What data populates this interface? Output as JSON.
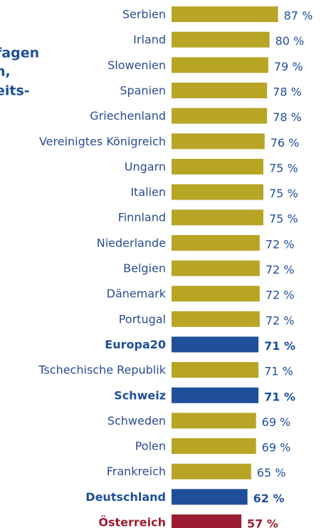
{
  "chart_data": {
    "type": "bar",
    "orientation": "horizontal",
    "title_lines": [
      "fagen",
      "n,",
      "eits-"
    ],
    "categories": [
      "Serbien",
      "Irland",
      "Slowenien",
      "Spanien",
      "Griechenland",
      "Vereinigtes Königreich",
      "Ungarn",
      "Italien",
      "Finnland",
      "Niederlande",
      "Belgien",
      "Dänemark",
      "Portugal",
      "Europa20",
      "Tschechische Republik",
      "Schweiz",
      "Schweden",
      "Polen",
      "Frankreich",
      "Deutschland",
      "Österreich"
    ],
    "values": [
      87,
      80,
      79,
      78,
      78,
      76,
      75,
      75,
      75,
      72,
      72,
      72,
      72,
      71,
      71,
      71,
      69,
      69,
      65,
      62,
      57
    ],
    "value_labels": [
      "87 %",
      "80 %",
      "79 %",
      "78 %",
      "78 %",
      "76 %",
      "75 %",
      "75 %",
      "75 %",
      "72 %",
      "72 %",
      "72 %",
      "72 %",
      "71 %",
      "71 %",
      "71 %",
      "69 %",
      "69 %",
      "65 %",
      "62 %",
      "57 %"
    ],
    "color": "#b8a526",
    "colors": [
      "#b8a526",
      "#b8a526",
      "#b8a526",
      "#b8a526",
      "#b8a526",
      "#b8a526",
      "#b8a526",
      "#b8a526",
      "#b8a526",
      "#b8a526",
      "#b8a526",
      "#b8a526",
      "#b8a526",
      "#1f4f98",
      "#b8a526",
      "#1f4f98",
      "#b8a526",
      "#b8a526",
      "#b8a526",
      "#1f4f98",
      "#9b1c31"
    ]
  }
}
